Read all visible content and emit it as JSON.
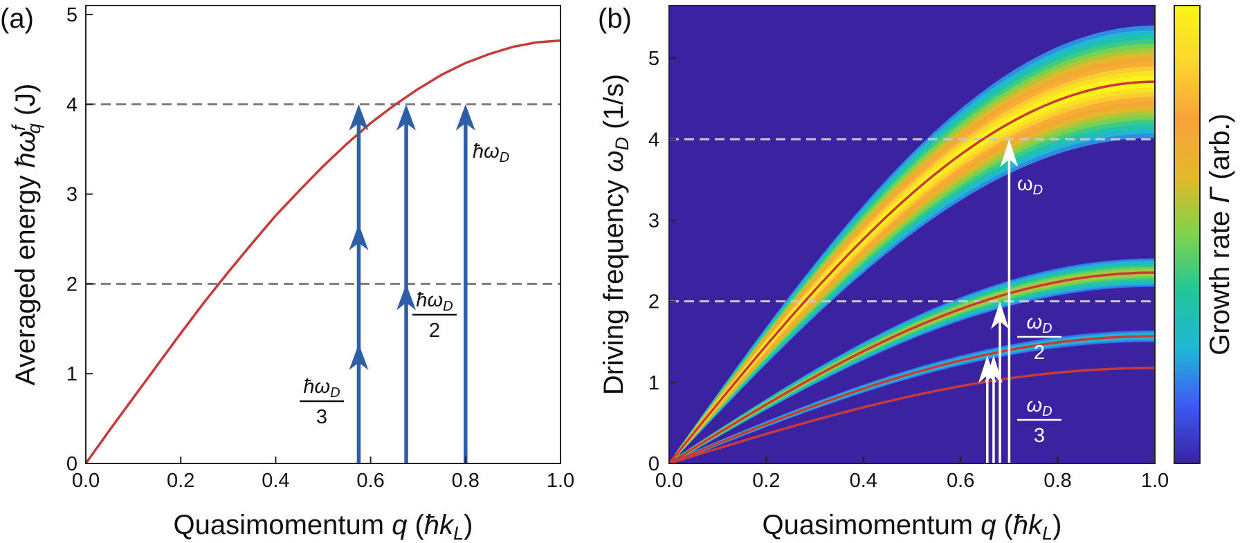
{
  "colors": {
    "curve": "#c83a3a",
    "arrow": "#2f5ea8",
    "dashed_a": "#7f7f7f",
    "dashed_b": "#c8c8c8",
    "background_b": "#3a22a0",
    "arrow_b": "#ffffff"
  },
  "chart_data": [
    {
      "panel_label": "(a)",
      "type": "line",
      "xlabel": {
        "pre": "Quasimomentum ",
        "var": "q",
        "post": " (",
        "hbar": "ħ",
        "k": "k",
        "sub": "L",
        "close": ")"
      },
      "ylabel": {
        "pre": "Averaged energy ",
        "sym": "ħω",
        "sup": "f",
        "sub": "q",
        "post": " (J)"
      },
      "xlim": [
        0,
        1.0
      ],
      "ylim": [
        0,
        5.1
      ],
      "xticks": [
        "0.0",
        "0.2",
        "0.4",
        "0.6",
        "0.8",
        "1.0"
      ],
      "yticks": [
        "0",
        "1",
        "2",
        "3",
        "4",
        "5"
      ],
      "series": [
        {
          "x": [
            0.0,
            0.05,
            0.1,
            0.15,
            0.2,
            0.25,
            0.3,
            0.35,
            0.4,
            0.45,
            0.5,
            0.55,
            0.6,
            0.65,
            0.7,
            0.75,
            0.8,
            0.85,
            0.9,
            0.95,
            1.0
          ],
          "y": [
            0.0,
            0.37,
            0.73,
            1.09,
            1.45,
            1.8,
            2.13,
            2.45,
            2.76,
            3.04,
            3.31,
            3.56,
            3.79,
            3.99,
            4.17,
            4.33,
            4.46,
            4.56,
            4.64,
            4.69,
            4.71
          ]
        }
      ],
      "hlines": [
        2,
        4
      ],
      "arrows": [
        {
          "q": 0.575,
          "segments": 3,
          "top": 4
        },
        {
          "q": 0.675,
          "segments": 2,
          "top": 4
        },
        {
          "q": 0.8,
          "segments": 1,
          "top": 4
        }
      ],
      "annotations": [
        {
          "num": "ħω",
          "sub": "D",
          "den": "3"
        },
        {
          "num": "ħω",
          "sub": "D",
          "den": "2"
        },
        {
          "text": "ħω",
          "sub": "D"
        }
      ]
    },
    {
      "panel_label": "(b)",
      "type": "heatmap",
      "xlabel": {
        "pre": "Quasimomentum ",
        "var": "q",
        "post": " (",
        "hbar": "ħ",
        "k": "k",
        "sub": "L",
        "close": ")"
      },
      "ylabel": {
        "pre": "Driving frequency ",
        "sym": "ω",
        "sub": "D",
        "post": " (1/s)"
      },
      "colorbar_label": {
        "pre": "Growth rate ",
        "sym": "Γ",
        "post": " (arb.)"
      },
      "xlim": [
        0,
        1.0
      ],
      "ylim": [
        0,
        5.65
      ],
      "xticks": [
        "0.0",
        "0.2",
        "0.4",
        "0.6",
        "0.8",
        "1.0"
      ],
      "yticks": [
        "0",
        "1",
        "2",
        "3",
        "4",
        "5"
      ],
      "bands": [
        {
          "amplitude": 4.71,
          "color": "#c83a3a"
        },
        {
          "amplitude": 2.355,
          "color": "#c83a3a"
        },
        {
          "amplitude": 1.57,
          "color": "#c83a3a"
        },
        {
          "amplitude": 1.178,
          "color": "#c83a3a"
        }
      ],
      "resonances": [
        {
          "center_amplitude": 4.71,
          "half_width_fraction": 0.13,
          "peak": 1.0
        },
        {
          "center_amplitude": 2.355,
          "half_width_fraction": 0.06,
          "peak": 0.5
        },
        {
          "center_amplitude": 1.57,
          "half_width_fraction": 0.03,
          "peak": 0.18
        }
      ],
      "hlines": [
        2,
        4
      ],
      "arrows": [
        {
          "q": 0.655,
          "from": 0,
          "to": 1.333
        },
        {
          "q": 0.668,
          "from": 0,
          "to": 1.333
        },
        {
          "q": 0.681,
          "from": 0,
          "to": 2
        },
        {
          "q": 0.7,
          "from": 0,
          "to": 4
        }
      ],
      "annotations": [
        {
          "text": "ω",
          "sub": "D"
        },
        {
          "num": "ω",
          "sub": "D",
          "den": "2"
        },
        {
          "num": "ω",
          "sub": "D",
          "den": "3"
        }
      ],
      "colormap": [
        "#3a22a0",
        "#3d58f4",
        "#21b7d8",
        "#20c69b",
        "#7fd34a",
        "#e2b82a",
        "#f9a13a",
        "#fbd52d",
        "#f9f31a"
      ]
    }
  ]
}
